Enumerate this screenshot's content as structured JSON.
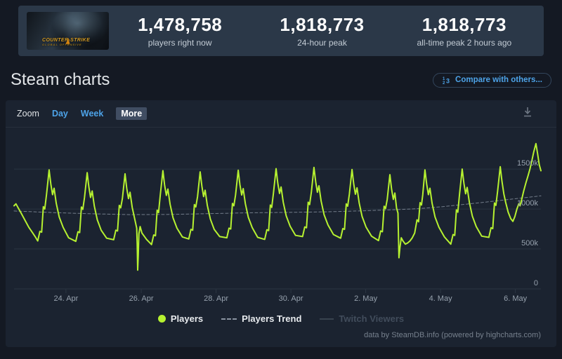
{
  "header": {
    "capsule": {
      "alt": "Counter-Strike game capsule",
      "logo_line1": "COUNTER-STRIKE",
      "logo_line2": "GLOBAL OFFENSIVE"
    },
    "stats": [
      {
        "value": "1,478,758",
        "label": "players right now"
      },
      {
        "value": "1,818,773",
        "label": "24-hour peak"
      },
      {
        "value": "1,818,773",
        "label": "all-time peak 2 hours ago"
      }
    ]
  },
  "section": {
    "title": "Steam charts",
    "compare_button": "Compare with others..."
  },
  "chart_controls": {
    "zoom_label": "Zoom",
    "ranges": [
      {
        "label": "Day",
        "active": false
      },
      {
        "label": "Week",
        "active": false
      },
      {
        "label": "More",
        "active": true
      }
    ],
    "download_tooltip": "export chart"
  },
  "colors": {
    "players_line": "#b6f130",
    "trend_line": "#8a94a1",
    "twitch_disabled": "#39434f",
    "gridline": "#2b3542",
    "axis_text": "#96a1ad",
    "link_blue": "#4da3e8",
    "stat_bar_bg": "#2b3848",
    "panel_bg": "#1b2330",
    "page_bg": "#141923"
  },
  "footer": {
    "credit": "data by SteamDB.info (powered by highcharts.com)"
  },
  "chart_data": {
    "type": "line",
    "title": "",
    "unit": "concurrent players, values in thousands (k)",
    "x_unit": "hours across the visible window (late 22. Apr to mid 6. May)",
    "legend_position": "bottom",
    "grid": true,
    "x_axis": {
      "range_hours": [
        0,
        338
      ],
      "ticks": [
        {
          "t": 33.3,
          "label": "24. Apr"
        },
        {
          "t": 81.6,
          "label": "26. Apr"
        },
        {
          "t": 129.6,
          "label": "28. Apr"
        },
        {
          "t": 177.6,
          "label": "30. Apr"
        },
        {
          "t": 225.6,
          "label": "2. May"
        },
        {
          "t": 273.6,
          "label": "4. May"
        },
        {
          "t": 321.6,
          "label": "6. May"
        }
      ]
    },
    "y_axis": {
      "min": 0,
      "max": 1975,
      "gridlines_k": [
        0,
        500,
        1000,
        1500
      ],
      "labels": [
        "0",
        "500k",
        "1000k",
        "1500k"
      ]
    },
    "series": [
      {
        "name": "Players",
        "color": "#b6f130",
        "dashed": false,
        "visible": true,
        "width": 2,
        "points": [
          [
            0,
            1040
          ],
          [
            1.2,
            1065
          ],
          [
            2.5,
            1020
          ],
          [
            4.5,
            950
          ],
          [
            7,
            860
          ],
          [
            9.5,
            770
          ],
          [
            12,
            700
          ],
          [
            13.5,
            655
          ],
          [
            15.2,
            600
          ],
          [
            16.6,
            720
          ],
          [
            17.7,
            710
          ],
          [
            18.8,
            1030
          ],
          [
            19.7,
            1000
          ],
          [
            20.8,
            1180
          ],
          [
            22.5,
            1490
          ],
          [
            23.6,
            1310
          ],
          [
            24.7,
            1180
          ],
          [
            25.7,
            1260
          ],
          [
            27.1,
            1070
          ],
          [
            29,
            900
          ],
          [
            31.5,
            770
          ],
          [
            35,
            640
          ],
          [
            39.6,
            595
          ],
          [
            41,
            715
          ],
          [
            42.1,
            705
          ],
          [
            43.2,
            1025
          ],
          [
            44.1,
            995
          ],
          [
            45.2,
            1145
          ],
          [
            46.9,
            1455
          ],
          [
            48,
            1275
          ],
          [
            49.1,
            1145
          ],
          [
            50.1,
            1225
          ],
          [
            51.5,
            1035
          ],
          [
            53.4,
            865
          ],
          [
            55.9,
            735
          ],
          [
            59.4,
            635
          ],
          [
            63.9,
            615
          ],
          [
            65.3,
            735
          ],
          [
            66.4,
            725
          ],
          [
            67.5,
            1045
          ],
          [
            68.4,
            1015
          ],
          [
            69.5,
            1130
          ],
          [
            71.2,
            1440
          ],
          [
            72.3,
            1260
          ],
          [
            73.4,
            1130
          ],
          [
            74.4,
            1210
          ],
          [
            75.8,
            1020
          ],
          [
            77.7,
            850
          ],
          [
            78.7,
            760
          ],
          [
            79.0,
            560
          ],
          [
            79.3,
            235
          ],
          [
            79.7,
            420
          ],
          [
            80.1,
            690
          ],
          [
            80.9,
            780
          ],
          [
            82,
            700
          ],
          [
            85,
            620
          ],
          [
            88.2,
            555
          ],
          [
            89.6,
            675
          ],
          [
            90.7,
            665
          ],
          [
            91.8,
            985
          ],
          [
            92.7,
            955
          ],
          [
            93.8,
            1170
          ],
          [
            95.5,
            1480
          ],
          [
            96.6,
            1300
          ],
          [
            97.7,
            1170
          ],
          [
            98.7,
            1250
          ],
          [
            100.1,
            1060
          ],
          [
            102,
            890
          ],
          [
            104.5,
            760
          ],
          [
            108,
            650
          ],
          [
            112.1,
            625
          ],
          [
            113.5,
            745
          ],
          [
            114.6,
            735
          ],
          [
            115.7,
            1055
          ],
          [
            116.6,
            1025
          ],
          [
            117.7,
            1155
          ],
          [
            119.4,
            1465
          ],
          [
            120.5,
            1285
          ],
          [
            121.6,
            1155
          ],
          [
            122.6,
            1235
          ],
          [
            124,
            1045
          ],
          [
            125.9,
            875
          ],
          [
            128.4,
            745
          ],
          [
            131.9,
            655
          ],
          [
            136.5,
            640
          ],
          [
            137.9,
            760
          ],
          [
            139,
            750
          ],
          [
            140.1,
            1070
          ],
          [
            141,
            1040
          ],
          [
            142.1,
            1175
          ],
          [
            143.8,
            1485
          ],
          [
            144.9,
            1305
          ],
          [
            146,
            1175
          ],
          [
            147,
            1255
          ],
          [
            148.4,
            1065
          ],
          [
            150.3,
            895
          ],
          [
            152.8,
            765
          ],
          [
            156.3,
            645
          ],
          [
            160.8,
            620
          ],
          [
            162.2,
            740
          ],
          [
            163.3,
            730
          ],
          [
            164.4,
            1050
          ],
          [
            165.3,
            1020
          ],
          [
            166.4,
            1195
          ],
          [
            168.1,
            1505
          ],
          [
            169.2,
            1325
          ],
          [
            170.3,
            1195
          ],
          [
            171.3,
            1275
          ],
          [
            172.7,
            1085
          ],
          [
            174.6,
            915
          ],
          [
            177.1,
            785
          ],
          [
            180.6,
            670
          ],
          [
            185.1,
            655
          ],
          [
            186.5,
            775
          ],
          [
            187.6,
            765
          ],
          [
            188.7,
            1085
          ],
          [
            189.6,
            1055
          ],
          [
            190.7,
            1210
          ],
          [
            192.4,
            1520
          ],
          [
            193.5,
            1340
          ],
          [
            194.6,
            1210
          ],
          [
            195.6,
            1290
          ],
          [
            197,
            1100
          ],
          [
            198.9,
            930
          ],
          [
            201.4,
            800
          ],
          [
            204.9,
            680
          ],
          [
            209.5,
            635
          ],
          [
            210.9,
            755
          ],
          [
            212,
            745
          ],
          [
            213.1,
            1065
          ],
          [
            214,
            1035
          ],
          [
            215.1,
            1185
          ],
          [
            216.8,
            1495
          ],
          [
            217.9,
            1315
          ],
          [
            219,
            1185
          ],
          [
            220,
            1265
          ],
          [
            221.4,
            1075
          ],
          [
            223.3,
            905
          ],
          [
            225.8,
            775
          ],
          [
            229.3,
            660
          ],
          [
            233.8,
            605
          ],
          [
            235.2,
            725
          ],
          [
            236.3,
            715
          ],
          [
            237.4,
            1035
          ],
          [
            238.3,
            1005
          ],
          [
            239.4,
            1120
          ],
          [
            241.1,
            1430
          ],
          [
            242.2,
            1250
          ],
          [
            243.3,
            1120
          ],
          [
            244.3,
            1200
          ],
          [
            245.4,
            1010
          ],
          [
            246.3,
            950
          ],
          [
            246.9,
            390
          ],
          [
            247.5,
            510
          ],
          [
            248.4,
            640
          ],
          [
            249.5,
            600
          ],
          [
            251,
            560
          ],
          [
            252.5,
            575
          ],
          [
            254,
            600
          ],
          [
            255.5,
            640
          ],
          [
            257,
            700
          ],
          [
            258.5,
            865
          ],
          [
            259.5,
            840
          ],
          [
            260.5,
            1080
          ],
          [
            261.4,
            1050
          ],
          [
            262.2,
            1180
          ],
          [
            263.6,
            1490
          ],
          [
            264.7,
            1310
          ],
          [
            265.8,
            1180
          ],
          [
            266.8,
            1260
          ],
          [
            268.2,
            1070
          ],
          [
            270.1,
            900
          ],
          [
            272.6,
            770
          ],
          [
            276.1,
            650
          ],
          [
            280.2,
            560
          ],
          [
            281.6,
            680
          ],
          [
            282.7,
            670
          ],
          [
            283.8,
            990
          ],
          [
            284.7,
            960
          ],
          [
            285.8,
            1190
          ],
          [
            287.5,
            1500
          ],
          [
            288.6,
            1320
          ],
          [
            289.7,
            1190
          ],
          [
            290.7,
            1270
          ],
          [
            292.1,
            1080
          ],
          [
            294,
            910
          ],
          [
            296.5,
            780
          ],
          [
            300,
            660
          ],
          [
            304.6,
            645
          ],
          [
            306,
            765
          ],
          [
            307.1,
            755
          ],
          [
            308.2,
            1075
          ],
          [
            309.1,
            1045
          ],
          [
            310.2,
            1220
          ],
          [
            311.9,
            1530
          ],
          [
            313,
            1350
          ],
          [
            314.2,
            1190
          ],
          [
            315.4,
            1080
          ],
          [
            317,
            960
          ],
          [
            318.6,
            880
          ],
          [
            320,
            845
          ],
          [
            321.3,
            905
          ],
          [
            322.6,
            1000
          ],
          [
            323.8,
            1065
          ],
          [
            324.6,
            1040
          ],
          [
            325.8,
            1130
          ],
          [
            327,
            1230
          ],
          [
            328.4,
            1330
          ],
          [
            329.8,
            1420
          ],
          [
            331,
            1505
          ],
          [
            332.2,
            1605
          ],
          [
            333.4,
            1715
          ],
          [
            334.8,
            1819
          ],
          [
            335.9,
            1690
          ],
          [
            336.9,
            1555
          ],
          [
            338,
            1479
          ]
        ]
      },
      {
        "name": "Players Trend",
        "color": "#8a94a1",
        "dashed": true,
        "visible": true,
        "width": 1,
        "points": [
          [
            0,
            975
          ],
          [
            25,
            955
          ],
          [
            50,
            940
          ],
          [
            75,
            930
          ],
          [
            100,
            932
          ],
          [
            125,
            942
          ],
          [
            150,
            952
          ],
          [
            175,
            958
          ],
          [
            200,
            965
          ],
          [
            225,
            978
          ],
          [
            245,
            992
          ],
          [
            260,
            1005
          ],
          [
            275,
            1030
          ],
          [
            290,
            1060
          ],
          [
            305,
            1092
          ],
          [
            320,
            1125
          ],
          [
            338,
            1165
          ]
        ]
      },
      {
        "name": "Twitch Viewers",
        "color": "#39434f",
        "dashed": false,
        "visible": false,
        "width": 2,
        "points": []
      }
    ]
  }
}
